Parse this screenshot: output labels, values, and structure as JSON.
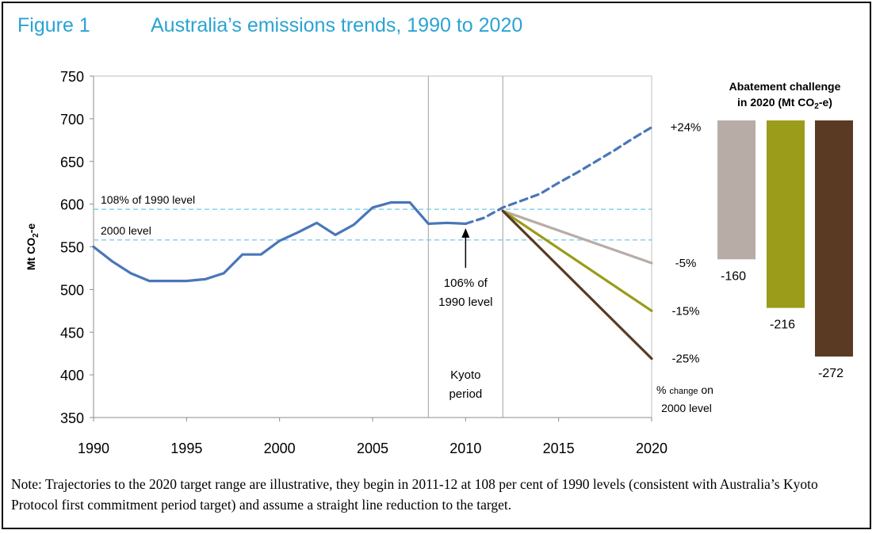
{
  "figure": {
    "number": "Figure 1",
    "title": "Australia’s emissions trends, 1990 to 2020"
  },
  "chart_data": {
    "type": "line",
    "title": "Australia’s emissions trends, 1990 to 2020",
    "ylabel": "Mt CO2-e",
    "ylabel_main": "Mt CO",
    "ylabel_sub": "2",
    "ylabel_suffix": "-e",
    "xlabel": "",
    "xlim": [
      1990,
      2020
    ],
    "ylim": [
      350,
      750
    ],
    "x_ticks": [
      "1990",
      "1995",
      "2000",
      "2005",
      "2010",
      "2015",
      "2020"
    ],
    "x_tick_values": [
      1990,
      1995,
      2000,
      2005,
      2010,
      2015,
      2020
    ],
    "y_ticks": [
      "350",
      "400",
      "450",
      "500",
      "550",
      "600",
      "650",
      "700",
      "750"
    ],
    "y_tick_values": [
      350,
      400,
      450,
      500,
      550,
      600,
      650,
      700,
      750
    ],
    "grid": false,
    "vertical_lines": [
      2008,
      2012
    ],
    "reference_lines": [
      {
        "value": 594,
        "label": "108% of 1990 level"
      },
      {
        "value": 558,
        "label": "2000 level"
      }
    ],
    "series": [
      {
        "key": "historical",
        "color": "#4a76b8",
        "dash": "solid",
        "x": [
          1990,
          1991,
          1992,
          1993,
          1994,
          1995,
          1996,
          1997,
          1998,
          1999,
          2000,
          2001,
          2002,
          2003,
          2004,
          2005,
          2006,
          2007,
          2008,
          2009,
          2010
        ],
        "y": [
          550,
          533,
          519,
          510,
          510,
          510,
          512,
          519,
          541,
          541,
          557,
          567,
          578,
          564,
          576,
          596,
          602,
          602,
          577,
          578,
          577
        ]
      },
      {
        "key": "projection",
        "color": "#4a76b8",
        "dash": "dashed",
        "x": [
          2010,
          2011,
          2012,
          2013,
          2014,
          2015,
          2016,
          2017,
          2018,
          2019,
          2020
        ],
        "y": [
          577,
          584,
          596,
          604,
          612,
          625,
          637,
          650,
          663,
          677,
          690
        ]
      },
      {
        "key": "minus5",
        "color": "#b7ada6",
        "dash": "solid",
        "x": [
          2012,
          2020
        ],
        "y": [
          592,
          531
        ]
      },
      {
        "key": "minus15",
        "color": "#9a9c1a",
        "dash": "solid",
        "x": [
          2012,
          2020
        ],
        "y": [
          592,
          475
        ]
      },
      {
        "key": "minus25",
        "color": "#5a3a22",
        "dash": "solid",
        "x": [
          2012,
          2020
        ],
        "y": [
          592,
          419
        ]
      }
    ],
    "line_end_labels": [
      {
        "text": "+24%",
        "y": 690
      },
      {
        "text": "-5%",
        "y": 531
      },
      {
        "text": "-15%",
        "y": 475
      },
      {
        "text": "-25%",
        "y": 419
      }
    ],
    "annotations": {
      "arrow_line1": "106% of",
      "arrow_line2": "1990 level",
      "kyoto_line1": "Kyoto",
      "kyoto_line2": "period",
      "pct_label_main": "%",
      "pct_label_small": "change",
      "pct_label_on": "on",
      "pct_label_line2": "2000 level"
    },
    "abatement": {
      "title_line1": "Abatement challenge",
      "title_line2_main": "in 2020 (Mt CO",
      "title_line2_sub": "2",
      "title_line2_end": "-e)",
      "bars": [
        {
          "value": -160,
          "label": "-160",
          "color": "#b7ada6"
        },
        {
          "value": -216,
          "label": "-216",
          "color": "#9a9c1a"
        },
        {
          "value": -272,
          "label": "-272",
          "color": "#5a3a22"
        }
      ]
    }
  },
  "note": "Note: Trajectories to the 2020 target range are illustrative, they begin in 2011-12 at 108 per cent of 1990 levels (consistent with Australia’s Kyoto Protocol first commitment period target) and assume a straight line reduction to the target."
}
